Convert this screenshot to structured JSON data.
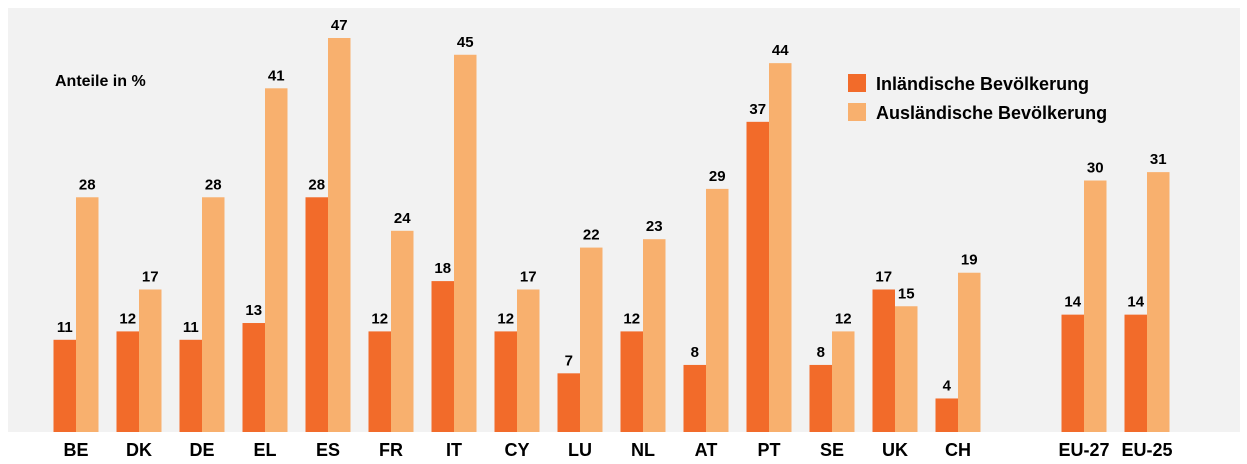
{
  "chart_data": {
    "type": "bar",
    "ylabel": "Anteile in %",
    "categories": [
      "BE",
      "DK",
      "DE",
      "EL",
      "ES",
      "FR",
      "IT",
      "CY",
      "LU",
      "NL",
      "AT",
      "PT",
      "SE",
      "UK",
      "CH",
      null,
      "EU-27",
      "EU-25"
    ],
    "series": [
      {
        "name": "Inländische Bevölkerung",
        "color": "#f26b2a",
        "values": [
          11,
          12,
          11,
          13,
          28,
          12,
          18,
          12,
          7,
          12,
          8,
          37,
          8,
          17,
          4,
          null,
          14,
          14
        ]
      },
      {
        "name": "Ausländische Bevölkerung",
        "color": "#f8b06e",
        "values": [
          28,
          17,
          28,
          41,
          47,
          24,
          45,
          17,
          22,
          23,
          29,
          44,
          12,
          15,
          19,
          null,
          30,
          31
        ]
      }
    ],
    "legend": "upper right"
  }
}
